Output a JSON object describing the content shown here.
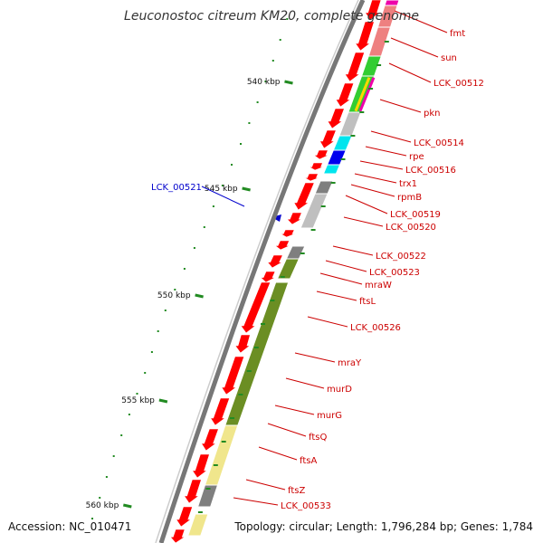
{
  "title": "Leuconostoc citreum KM20, complete genome",
  "accession": "Accession: NC_010471",
  "summary": "Topology: circular; Length: 1,796,284 bp; Genes: 1,784",
  "colors": {
    "backbone": "#888888",
    "cds": "#ff0000",
    "label_plus": "#cc0000",
    "label_minus": "#0000cc",
    "tick": "#228b22",
    "olive": "#6b8e23",
    "khaki": "#f0e68c",
    "gray": "#7f7f7f",
    "lightgray": "#bfbfbf",
    "cyan": "#00e5ee",
    "blue": "#0000ee",
    "green": "#32cd32",
    "salmon": "#ee8080",
    "magenta": "#ee00aa"
  },
  "ticks": [
    {
      "label": "540 kbp"
    },
    {
      "label": "545 kbp"
    },
    {
      "label": "550 kbp"
    },
    {
      "label": "555 kbp"
    },
    {
      "label": "560 kbp"
    }
  ],
  "gene_labels": [
    {
      "name": "fmt",
      "strand": "+"
    },
    {
      "name": "sun",
      "strand": "+"
    },
    {
      "name": "LCK_00512",
      "strand": "+"
    },
    {
      "name": "pkn",
      "strand": "+"
    },
    {
      "name": "LCK_00514",
      "strand": "+"
    },
    {
      "name": "rpe",
      "strand": "+"
    },
    {
      "name": "LCK_00516",
      "strand": "+"
    },
    {
      "name": "trx1",
      "strand": "+"
    },
    {
      "name": "rpmB",
      "strand": "+"
    },
    {
      "name": "LCK_00519",
      "strand": "+"
    },
    {
      "name": "LCK_00520",
      "strand": "+"
    },
    {
      "name": "LCK_00521",
      "strand": "-"
    },
    {
      "name": "LCK_00522",
      "strand": "+"
    },
    {
      "name": "LCK_00523",
      "strand": "+"
    },
    {
      "name": "mraW",
      "strand": "+"
    },
    {
      "name": "ftsL",
      "strand": "+"
    },
    {
      "name": "LCK_00526",
      "strand": "+"
    },
    {
      "name": "mraY",
      "strand": "+"
    },
    {
      "name": "murD",
      "strand": "+"
    },
    {
      "name": "murG",
      "strand": "+"
    },
    {
      "name": "ftsQ",
      "strand": "+"
    },
    {
      "name": "ftsA",
      "strand": "+"
    },
    {
      "name": "ftsZ",
      "strand": "+"
    },
    {
      "name": "LCK_00533",
      "strand": "+"
    }
  ]
}
